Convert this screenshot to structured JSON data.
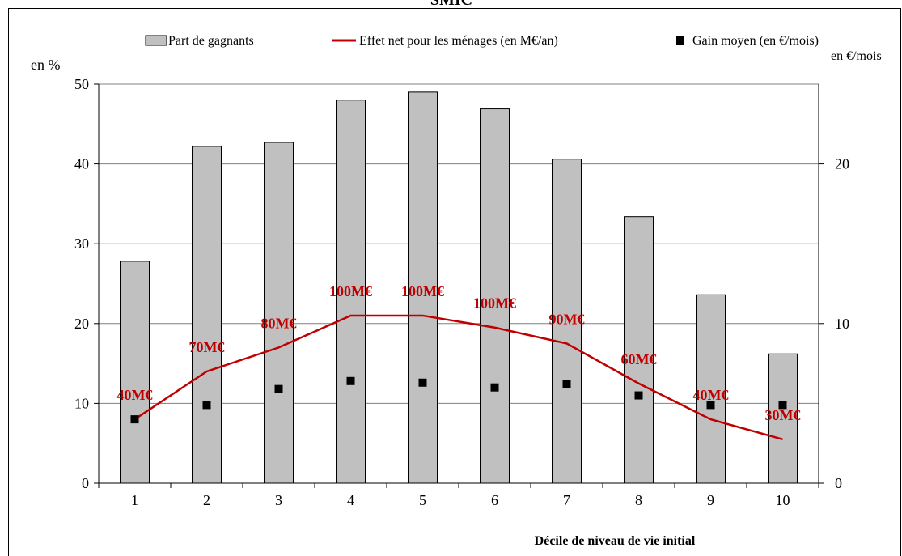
{
  "chart_data": {
    "type": "bar",
    "title": "SMIC",
    "xlabel": "Décile de niveau de vie initial",
    "ylabel_left": "en %",
    "ylabel_right": "en €/mois",
    "categories": [
      "1",
      "2",
      "3",
      "4",
      "5",
      "6",
      "7",
      "8",
      "9",
      "10"
    ],
    "ylim_left": [
      0,
      50
    ],
    "yticks_left": [
      "0",
      "10",
      "20",
      "30",
      "40",
      "50"
    ],
    "ylim_right": [
      0,
      25
    ],
    "yticks_right": [
      "0",
      "10",
      "20"
    ],
    "grid": true,
    "legend_position": "top",
    "series": [
      {
        "name": "Part de gagnants",
        "kind": "bar",
        "axis": "left",
        "color": "#c0c0c0",
        "values": [
          27.8,
          42.2,
          42.7,
          48.0,
          49.0,
          46.9,
          40.6,
          33.4,
          23.6,
          16.2
        ]
      },
      {
        "name": "Effet net pour les ménages (en M€/an)",
        "kind": "line",
        "axis": "left",
        "color": "#c00000",
        "values": [
          8.0,
          14.0,
          17.0,
          21.0,
          21.0,
          19.5,
          17.5,
          12.5,
          8.0,
          5.5
        ],
        "labels": [
          "40M€",
          "70M€",
          "80M€",
          "100M€",
          "100M€",
          "100M€",
          "90M€",
          "60M€",
          "40M€",
          "30M€"
        ]
      },
      {
        "name": "Gain moyen (en €/mois)",
        "kind": "scatter",
        "axis": "right",
        "color": "#000000",
        "values": [
          4.0,
          4.9,
          5.9,
          6.4,
          6.3,
          6.0,
          6.2,
          5.5,
          4.9,
          4.9
        ]
      }
    ]
  }
}
